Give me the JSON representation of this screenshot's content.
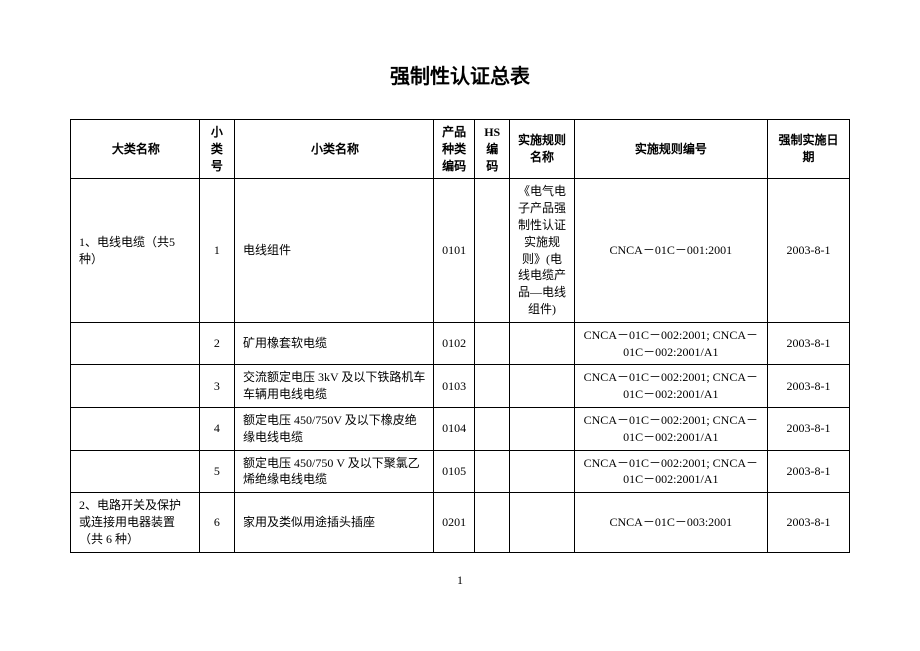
{
  "title": "强制性认证总表",
  "page_number": "1",
  "columns": {
    "major": "大类名称",
    "subno": "小\n类\n号",
    "subname": "小类名称",
    "prodcode": "产品种类编码",
    "hs": "HS编码",
    "rulename": "实施规则名称",
    "ruleno": "实施规则编号",
    "date": "强制实施日期"
  },
  "rows": [
    {
      "major": "1、电线电缆（共5 种）",
      "subno": "1",
      "subname": "电线组件",
      "prodcode": "0101",
      "hs": "",
      "rulename": "《电气电子产品强制性认证实施规则》(电线电缆产品—电线组件)",
      "ruleno": "CNCA－01C－001:2001",
      "date": "2003-8-1"
    },
    {
      "major": "",
      "subno": "2",
      "subname": "矿用橡套软电缆",
      "prodcode": "0102",
      "hs": "",
      "rulename": "",
      "ruleno": "CNCA－01C－002:2001;\nCNCA－01C－002:2001/A1",
      "date": "2003-8-1"
    },
    {
      "major": "",
      "subno": "3",
      "subname": "交流额定电压 3kV 及以下铁路机车车辆用电线电缆",
      "prodcode": "0103",
      "hs": "",
      "rulename": "",
      "ruleno": "CNCA－01C－002:2001;\nCNCA－01C－002:2001/A1",
      "date": "2003-8-1"
    },
    {
      "major": "",
      "subno": "4",
      "subname": "额定电压 450/750V 及以下橡皮绝缘电线电缆",
      "prodcode": "0104",
      "hs": "",
      "rulename": "",
      "ruleno": "CNCA－01C－002:2001;\nCNCA－01C－002:2001/A1",
      "date": "2003-8-1"
    },
    {
      "major": "",
      "subno": "5",
      "subname": "额定电压 450/750  V 及以下聚氯乙烯绝缘电线电缆",
      "prodcode": "0105",
      "hs": "",
      "rulename": "",
      "ruleno": "CNCA－01C－002:2001;\nCNCA－01C－002:2001/A1",
      "date": "2003-8-1"
    },
    {
      "major": "2、电路开关及保护或连接用电器装置（共 6 种）",
      "subno": "6",
      "subname": "家用及类似用途插头插座",
      "prodcode": "0201",
      "hs": "",
      "rulename": "",
      "ruleno": "CNCA－01C－003:2001",
      "date": "2003-8-1"
    }
  ]
}
